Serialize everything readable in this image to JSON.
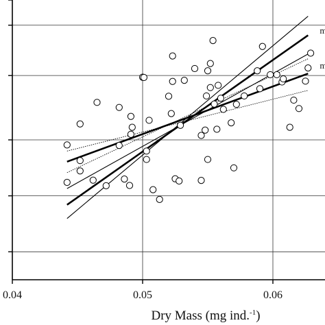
{
  "chart_data": {
    "type": "scatter",
    "title": "",
    "xlabel": "Dry Mass (mg  ind.",
    "xlabel_superscript": "-1",
    "xlabel_suffix": ")",
    "ylabel": "",
    "xlim": [
      0.04,
      0.064
    ],
    "ylim": [
      0,
      1
    ],
    "x_ticks": [
      {
        "value": 0.04,
        "label": "0.04"
      },
      {
        "value": 0.05,
        "label": "0.05"
      },
      {
        "value": 0.06,
        "label": "0.06"
      }
    ],
    "x_gridlines": [
      0.05,
      0.06
    ],
    "y_gridlines": [
      0.1,
      0.3,
      0.5,
      0.73,
      0.91
    ],
    "y_ticks": [
      0.1,
      0.3,
      0.5,
      0.73,
      0.91,
      1.0
    ],
    "grid": true,
    "points": [
      {
        "x": 0.0442,
        "y": 0.482
      },
      {
        "x": 0.0442,
        "y": 0.348
      },
      {
        "x": 0.0452,
        "y": 0.426
      },
      {
        "x": 0.0452,
        "y": 0.389
      },
      {
        "x": 0.0452,
        "y": 0.557
      },
      {
        "x": 0.0465,
        "y": 0.634
      },
      {
        "x": 0.0462,
        "y": 0.356
      },
      {
        "x": 0.0472,
        "y": 0.336
      },
      {
        "x": 0.0482,
        "y": 0.48
      },
      {
        "x": 0.0482,
        "y": 0.616
      },
      {
        "x": 0.0486,
        "y": 0.36
      },
      {
        "x": 0.049,
        "y": 0.337
      },
      {
        "x": 0.0491,
        "y": 0.52
      },
      {
        "x": 0.0491,
        "y": 0.584
      },
      {
        "x": 0.0492,
        "y": 0.545
      },
      {
        "x": 0.05,
        "y": 0.724
      },
      {
        "x": 0.0501,
        "y": 0.723
      },
      {
        "x": 0.0503,
        "y": 0.43
      },
      {
        "x": 0.0503,
        "y": 0.46
      },
      {
        "x": 0.0505,
        "y": 0.57
      },
      {
        "x": 0.0508,
        "y": 0.322
      },
      {
        "x": 0.0513,
        "y": 0.287
      },
      {
        "x": 0.052,
        "y": 0.656
      },
      {
        "x": 0.0522,
        "y": 0.594
      },
      {
        "x": 0.0523,
        "y": 0.709
      },
      {
        "x": 0.0523,
        "y": 0.8
      },
      {
        "x": 0.0525,
        "y": 0.361
      },
      {
        "x": 0.0528,
        "y": 0.353
      },
      {
        "x": 0.0529,
        "y": 0.552
      },
      {
        "x": 0.0532,
        "y": 0.713
      },
      {
        "x": 0.054,
        "y": 0.755
      },
      {
        "x": 0.0545,
        "y": 0.516
      },
      {
        "x": 0.0545,
        "y": 0.355
      },
      {
        "x": 0.0548,
        "y": 0.535
      },
      {
        "x": 0.0549,
        "y": 0.657
      },
      {
        "x": 0.055,
        "y": 0.43
      },
      {
        "x": 0.055,
        "y": 0.747
      },
      {
        "x": 0.0552,
        "y": 0.687
      },
      {
        "x": 0.0552,
        "y": 0.773
      },
      {
        "x": 0.0554,
        "y": 0.855
      },
      {
        "x": 0.0555,
        "y": 0.628
      },
      {
        "x": 0.0557,
        "y": 0.538
      },
      {
        "x": 0.0558,
        "y": 0.695
      },
      {
        "x": 0.056,
        "y": 0.649
      },
      {
        "x": 0.0562,
        "y": 0.609
      },
      {
        "x": 0.0568,
        "y": 0.561
      },
      {
        "x": 0.057,
        "y": 0.4
      },
      {
        "x": 0.0572,
        "y": 0.627
      },
      {
        "x": 0.0578,
        "y": 0.657
      },
      {
        "x": 0.0588,
        "y": 0.747
      },
      {
        "x": 0.059,
        "y": 0.683
      },
      {
        "x": 0.0592,
        "y": 0.834
      },
      {
        "x": 0.0598,
        "y": 0.733
      },
      {
        "x": 0.0603,
        "y": 0.733
      },
      {
        "x": 0.0607,
        "y": 0.707
      },
      {
        "x": 0.0608,
        "y": 0.718
      },
      {
        "x": 0.0613,
        "y": 0.545
      },
      {
        "x": 0.0616,
        "y": 0.642
      },
      {
        "x": 0.062,
        "y": 0.612
      },
      {
        "x": 0.0625,
        "y": 0.71
      },
      {
        "x": 0.0627,
        "y": 0.757
      },
      {
        "x": 0.0629,
        "y": 0.81
      }
    ],
    "lines": [
      {
        "style": "thick",
        "x": [
          0.0442,
          0.0627
        ],
        "y": [
          0.422,
          0.737
        ]
      },
      {
        "style": "thin-dotted",
        "x": [
          0.0442,
          0.0627
        ],
        "y": [
          0.46,
          0.677
        ]
      },
      {
        "style": "thin-dotted",
        "x": [
          0.0442,
          0.0627
        ],
        "y": [
          0.383,
          0.79
        ]
      },
      {
        "style": "thick",
        "x": [
          0.0442,
          0.0627
        ],
        "y": [
          0.268,
          0.874
        ]
      },
      {
        "style": "thin",
        "x": [
          0.0442,
          0.0627
        ],
        "y": [
          0.326,
          0.807
        ]
      },
      {
        "style": "thin",
        "x": [
          0.0442,
          0.0627
        ],
        "y": [
          0.219,
          0.942
        ]
      }
    ],
    "annotations": [
      {
        "text": "m",
        "x": 0.0636,
        "y": 0.88
      },
      {
        "text": "m",
        "x": 0.0636,
        "y": 0.755
      }
    ]
  }
}
